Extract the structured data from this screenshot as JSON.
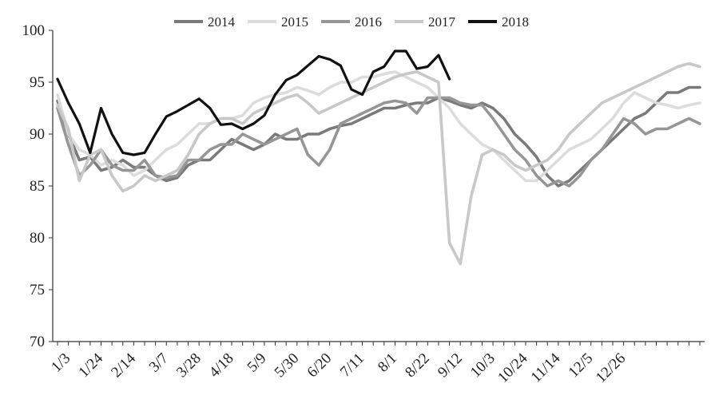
{
  "chart_data": {
    "type": "line",
    "title": "",
    "xlabel": "",
    "ylabel": "",
    "ylim": [
      70,
      100
    ],
    "yticks": [
      70,
      75,
      80,
      85,
      90,
      95,
      100
    ],
    "grid": false,
    "legend_position": "top",
    "x_tick_labels": [
      "1/3",
      "1/24",
      "2/14",
      "3/7",
      "3/28",
      "4/18",
      "5/9",
      "5/30",
      "6/20",
      "7/11",
      "8/1",
      "8/22",
      "9/12",
      "10/3",
      "10/24",
      "11/14",
      "12/5",
      "12/26"
    ],
    "series": [
      {
        "name": "2014",
        "color": "#7a7a7a",
        "values": [
          93.2,
          90.0,
          87.5,
          87.8,
          86.5,
          86.8,
          87.5,
          86.8,
          86.8,
          86.0,
          85.5,
          85.8,
          87.0,
          87.5,
          87.5,
          88.5,
          89.5,
          89.0,
          88.5,
          89.0,
          90.0,
          89.5,
          89.5,
          90.0,
          90.0,
          90.5,
          90.8,
          91.0,
          91.5,
          92.0,
          92.5,
          92.5,
          92.8,
          93.0,
          93.0,
          93.5,
          93.2,
          92.8,
          92.5,
          93.0,
          92.5,
          91.5,
          90.0,
          89.0,
          87.8,
          86.0,
          85.0,
          85.5,
          86.5,
          87.5,
          88.5,
          89.5,
          90.5,
          91.5,
          92.0,
          93.0,
          94.0,
          94.0,
          94.5,
          94.5
        ]
      },
      {
        "name": "2015",
        "color": "#dcdcdc",
        "values": [
          93.8,
          90.0,
          88.5,
          88.0,
          87.0,
          87.5,
          87.0,
          86.0,
          86.5,
          87.5,
          88.5,
          89.0,
          90.0,
          91.0,
          91.0,
          91.5,
          91.5,
          91.8,
          93.0,
          93.5,
          93.8,
          94.0,
          94.5,
          94.2,
          93.8,
          94.5,
          95.0,
          95.0,
          95.5,
          95.5,
          95.8,
          96.0,
          95.5,
          95.0,
          94.5,
          93.5,
          92.5,
          91.0,
          90.0,
          89.0,
          88.5,
          87.5,
          86.5,
          85.5,
          85.5,
          86.5,
          87.5,
          88.5,
          89.0,
          89.5,
          90.5,
          91.5,
          93.0,
          94.0,
          93.5,
          93.0,
          92.8,
          92.5,
          92.8,
          93.0
        ]
      },
      {
        "name": "2016",
        "color": "#969696",
        "values": [
          92.5,
          89.0,
          86.0,
          87.0,
          88.5,
          87.0,
          86.5,
          86.5,
          87.5,
          86.0,
          85.8,
          86.0,
          87.5,
          87.5,
          88.5,
          89.0,
          89.0,
          90.0,
          89.5,
          89.0,
          89.5,
          90.0,
          90.5,
          88.0,
          87.0,
          88.5,
          91.0,
          91.5,
          92.0,
          92.5,
          93.0,
          93.2,
          93.0,
          92.0,
          93.5,
          93.5,
          93.5,
          93.0,
          92.8,
          92.8,
          91.5,
          90.0,
          88.5,
          87.5,
          86.0,
          85.0,
          85.5,
          85.0,
          86.0,
          87.5,
          88.5,
          90.0,
          91.5,
          91.0,
          90.0,
          90.5,
          90.5,
          91.0,
          91.5,
          91.0
        ]
      },
      {
        "name": "2017",
        "color": "#c8c8c8",
        "values": [
          92.8,
          90.5,
          85.5,
          88.0,
          88.5,
          86.0,
          84.5,
          85.0,
          86.0,
          85.5,
          86.0,
          86.5,
          88.0,
          90.0,
          91.0,
          91.5,
          91.5,
          91.0,
          92.0,
          92.5,
          93.0,
          93.5,
          93.8,
          93.0,
          92.0,
          92.5,
          93.0,
          93.5,
          94.0,
          94.5,
          95.0,
          95.5,
          95.8,
          96.0,
          95.5,
          95.0,
          79.5,
          77.5,
          84.0,
          88.0,
          88.5,
          88.0,
          87.0,
          86.5,
          87.0,
          87.5,
          88.5,
          90.0,
          91.0,
          92.0,
          93.0,
          93.5,
          94.0,
          94.5,
          95.0,
          95.5,
          96.0,
          96.5,
          96.8,
          96.5
        ]
      },
      {
        "name": "2018",
        "color": "#111111",
        "values": [
          95.3,
          93.0,
          91.0,
          88.2,
          92.5,
          90.0,
          88.2,
          88.0,
          88.2,
          90.0,
          91.7,
          92.2,
          92.8,
          93.4,
          92.5,
          90.9,
          91.0,
          90.5,
          91.0,
          91.8,
          93.8,
          95.2,
          95.7,
          96.6,
          97.5,
          97.2,
          96.6,
          94.3,
          93.8,
          96.0,
          96.5,
          98.0,
          98.0,
          96.3,
          96.5,
          97.6,
          95.3
        ]
      }
    ]
  }
}
